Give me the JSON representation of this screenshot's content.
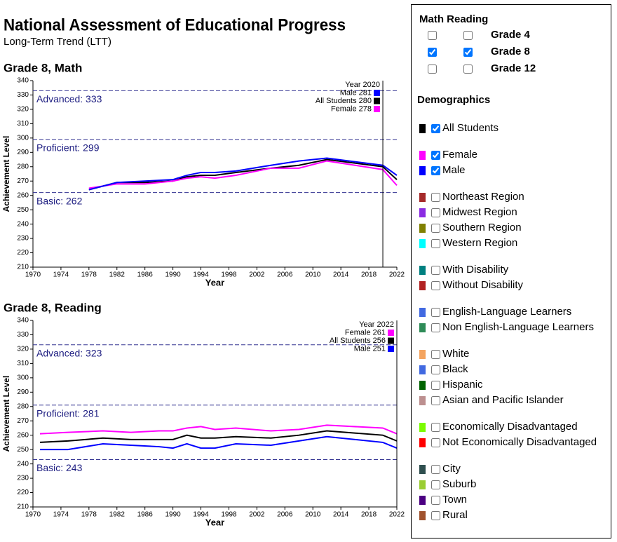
{
  "header": {
    "title": "National Assessment of Educational Progress",
    "subtitle": "Long-Term Trend (LTT)"
  },
  "chart_data": [
    {
      "type": "line",
      "title": "Grade 8, Math",
      "x_label": "Year",
      "y_label": "Achievement Level",
      "x": [
        1978,
        1982,
        1986,
        1990,
        1992,
        1994,
        1996,
        1999,
        2004,
        2008,
        2012,
        2020,
        2022
      ],
      "xlim": [
        1970,
        2022
      ],
      "xticks": [
        1970,
        1974,
        1978,
        1982,
        1986,
        1990,
        1994,
        1998,
        2002,
        2006,
        2010,
        2014,
        2018,
        2022
      ],
      "ylim": [
        210,
        340
      ],
      "yticks": [
        210,
        220,
        230,
        240,
        250,
        260,
        270,
        280,
        290,
        300,
        310,
        320,
        330,
        340
      ],
      "series": [
        {
          "name": "All Students",
          "color": "#000000",
          "values": [
            264,
            269,
            269,
            270,
            273,
            274,
            274,
            276,
            279,
            281,
            285,
            280,
            271
          ]
        },
        {
          "name": "Female",
          "color": "#ff00ff",
          "values": [
            265,
            268,
            268,
            270,
            272,
            273,
            272,
            274,
            279,
            279,
            284,
            278,
            267
          ]
        },
        {
          "name": "Male",
          "color": "#0000ff",
          "values": [
            264,
            269,
            270,
            271,
            274,
            276,
            276,
            277,
            281,
            284,
            286,
            281,
            274
          ]
        }
      ],
      "reference_lines": [
        {
          "value": 333,
          "label": "Advanced: 333"
        },
        {
          "value": 299,
          "label": "Proficient: 299"
        },
        {
          "value": 262,
          "label": "Basic: 262"
        }
      ],
      "hover": {
        "x": 2020,
        "title": "Year 2020",
        "items": [
          {
            "label": "Male 281",
            "color": "#0000ff"
          },
          {
            "label": "All Students 280",
            "color": "#000000"
          },
          {
            "label": "Female 278",
            "color": "#ff00ff"
          }
        ]
      }
    },
    {
      "type": "line",
      "title": "Grade 8, Reading",
      "x_label": "Year",
      "y_label": "Achievement Level",
      "x": [
        1971,
        1975,
        1980,
        1984,
        1988,
        1990,
        1992,
        1994,
        1996,
        1999,
        2004,
        2008,
        2012,
        2020,
        2022
      ],
      "xlim": [
        1970,
        2022
      ],
      "xticks": [
        1970,
        1974,
        1978,
        1982,
        1986,
        1990,
        1994,
        1998,
        2002,
        2006,
        2010,
        2014,
        2018,
        2022
      ],
      "ylim": [
        210,
        340
      ],
      "yticks": [
        210,
        220,
        230,
        240,
        250,
        260,
        270,
        280,
        290,
        300,
        310,
        320,
        330,
        340
      ],
      "series": [
        {
          "name": "All Students",
          "color": "#000000",
          "values": [
            255,
            256,
            258,
            257,
            257,
            257,
            260,
            258,
            258,
            259,
            258,
            260,
            263,
            260,
            256
          ]
        },
        {
          "name": "Female",
          "color": "#ff00ff",
          "values": [
            261,
            262,
            263,
            262,
            263,
            263,
            265,
            266,
            264,
            265,
            263,
            264,
            267,
            265,
            261
          ]
        },
        {
          "name": "Male",
          "color": "#0000ff",
          "values": [
            250,
            250,
            254,
            253,
            252,
            251,
            254,
            251,
            251,
            254,
            253,
            256,
            259,
            255,
            251
          ]
        }
      ],
      "reference_lines": [
        {
          "value": 323,
          "label": "Advanced: 323"
        },
        {
          "value": 281,
          "label": "Proficient: 281"
        },
        {
          "value": 243,
          "label": "Basic: 243"
        }
      ],
      "hover": {
        "x": 2022,
        "title": "Year 2022",
        "items": [
          {
            "label": "Female 261",
            "color": "#ff00ff"
          },
          {
            "label": "All Students 256",
            "color": "#000000"
          },
          {
            "label": "Male 251",
            "color": "#0000ff"
          }
        ]
      }
    }
  ],
  "sidebar": {
    "subject_header": "Math Reading",
    "grades": [
      {
        "label": "Grade 4",
        "math": false,
        "reading": false
      },
      {
        "label": "Grade 8",
        "math": true,
        "reading": true
      },
      {
        "label": "Grade 12",
        "math": false,
        "reading": false
      }
    ],
    "demographics_title": "Demographics",
    "groups": [
      [
        {
          "label": "All Students",
          "color": "#000000",
          "checked": true
        }
      ],
      [
        {
          "label": "Female",
          "color": "#ff00ff",
          "checked": true
        },
        {
          "label": "Male",
          "color": "#0000ff",
          "checked": true
        }
      ],
      [
        {
          "label": "Northeast Region",
          "color": "#a52a2a",
          "checked": false
        },
        {
          "label": "Midwest Region",
          "color": "#8a2be2",
          "checked": false
        },
        {
          "label": "Southern Region",
          "color": "#808000",
          "checked": false
        },
        {
          "label": "Western Region",
          "color": "#00ffff",
          "checked": false
        }
      ],
      [
        {
          "label": "With Disability",
          "color": "#008080",
          "checked": false
        },
        {
          "label": "Without Disability",
          "color": "#b22222",
          "checked": false
        }
      ],
      [
        {
          "label": "English-Language Learners",
          "color": "#4169e1",
          "checked": false
        },
        {
          "label": "Non English-Language Learners",
          "color": "#2e8b57",
          "checked": false
        }
      ],
      [
        {
          "label": "White",
          "color": "#f4a460",
          "checked": false
        },
        {
          "label": "Black",
          "color": "#4169e1",
          "checked": false
        },
        {
          "label": "Hispanic",
          "color": "#006400",
          "checked": false
        },
        {
          "label": "Asian and Pacific Islander",
          "color": "#bc8f8f",
          "checked": false
        }
      ],
      [
        {
          "label": "Economically Disadvantaged",
          "color": "#7cfc00",
          "checked": false
        },
        {
          "label": "Not Economically Disadvantaged",
          "color": "#ff0000",
          "checked": false
        }
      ],
      [
        {
          "label": "City",
          "color": "#2f4f4f",
          "checked": false
        },
        {
          "label": "Suburb",
          "color": "#9acd32",
          "checked": false
        },
        {
          "label": "Town",
          "color": "#4b0082",
          "checked": false
        },
        {
          "label": "Rural",
          "color": "#a0522d",
          "checked": false
        }
      ]
    ]
  }
}
